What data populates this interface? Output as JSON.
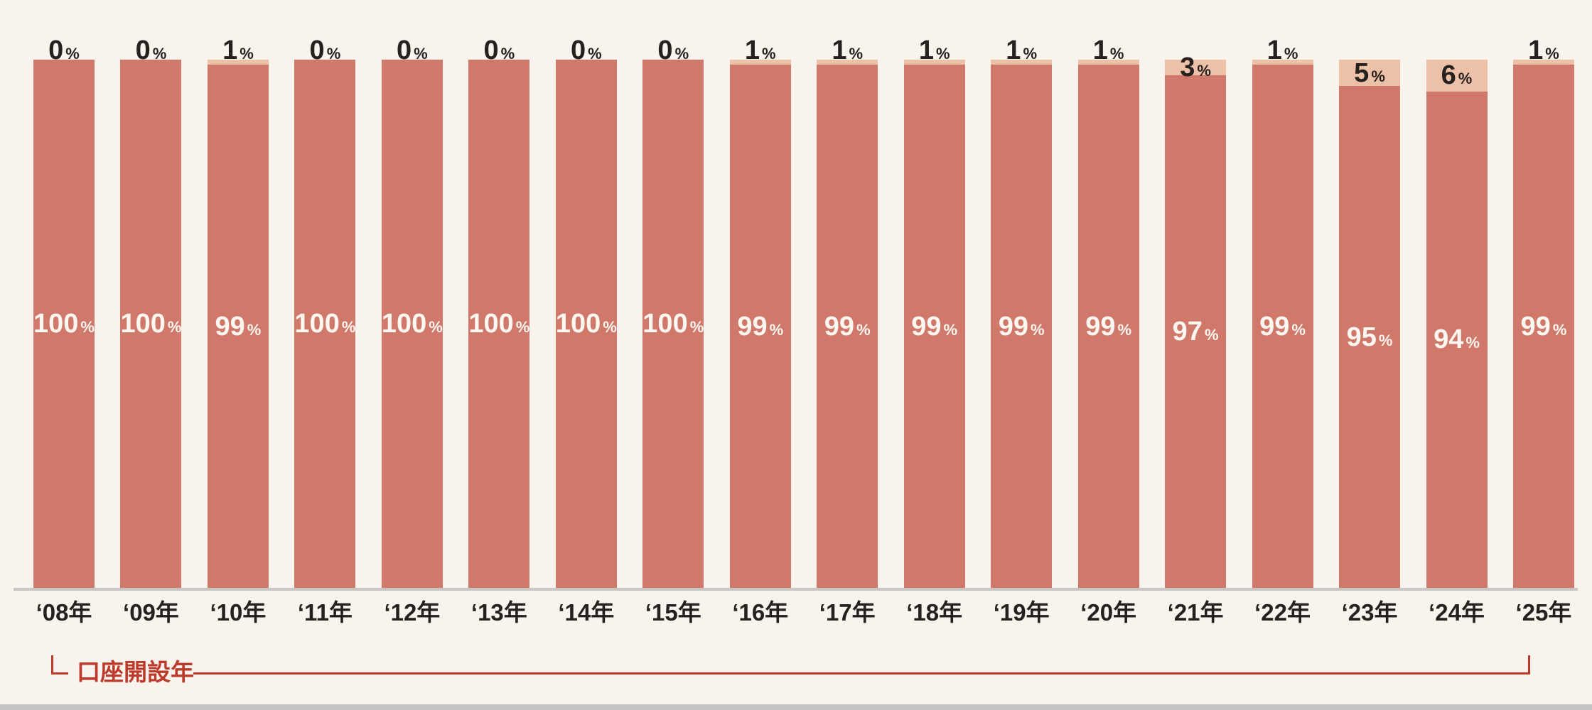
{
  "chart_data": {
    "type": "bar",
    "variant": "stacked-100-percent",
    "title": "",
    "categories": [
      "‘08年",
      "‘09年",
      "‘10年",
      "‘11年",
      "‘12年",
      "‘13年",
      "‘14年",
      "‘15年",
      "‘16年",
      "‘17年",
      "‘18年",
      "‘19年",
      "‘20年",
      "‘21年",
      "‘22年",
      "‘23年",
      "‘24年",
      "‘25年"
    ],
    "series": [
      {
        "name": "bottom-segment",
        "position": "bottom",
        "color": "#d0786a",
        "label_color": "#fdf7f1",
        "values": [
          100,
          100,
          99,
          100,
          100,
          100,
          100,
          100,
          99,
          99,
          99,
          99,
          99,
          97,
          99,
          95,
          94,
          99
        ]
      },
      {
        "name": "top-segment",
        "position": "top",
        "color": "#edc1a8",
        "label_color": "#26211e",
        "values": [
          0,
          0,
          1,
          0,
          0,
          0,
          0,
          0,
          1,
          1,
          1,
          1,
          1,
          3,
          1,
          5,
          6,
          1
        ]
      }
    ],
    "unit_suffix": "%",
    "ylim": [
      0,
      100
    ],
    "grid": false,
    "legend": "none",
    "xaxis_bracket_label": "口座開設年"
  },
  "colors": {
    "background": "#f9f3ee",
    "bar_main": "#d0786a",
    "bar_top": "#edc1a8",
    "value_label_light": "#fdf7f1",
    "value_label_dark": "#26211e",
    "axis_text": "#26211e",
    "baseline": "#c9c6c3",
    "bracket_red": "#bd3a2b",
    "bottom_edge": "#c6c4c2"
  }
}
